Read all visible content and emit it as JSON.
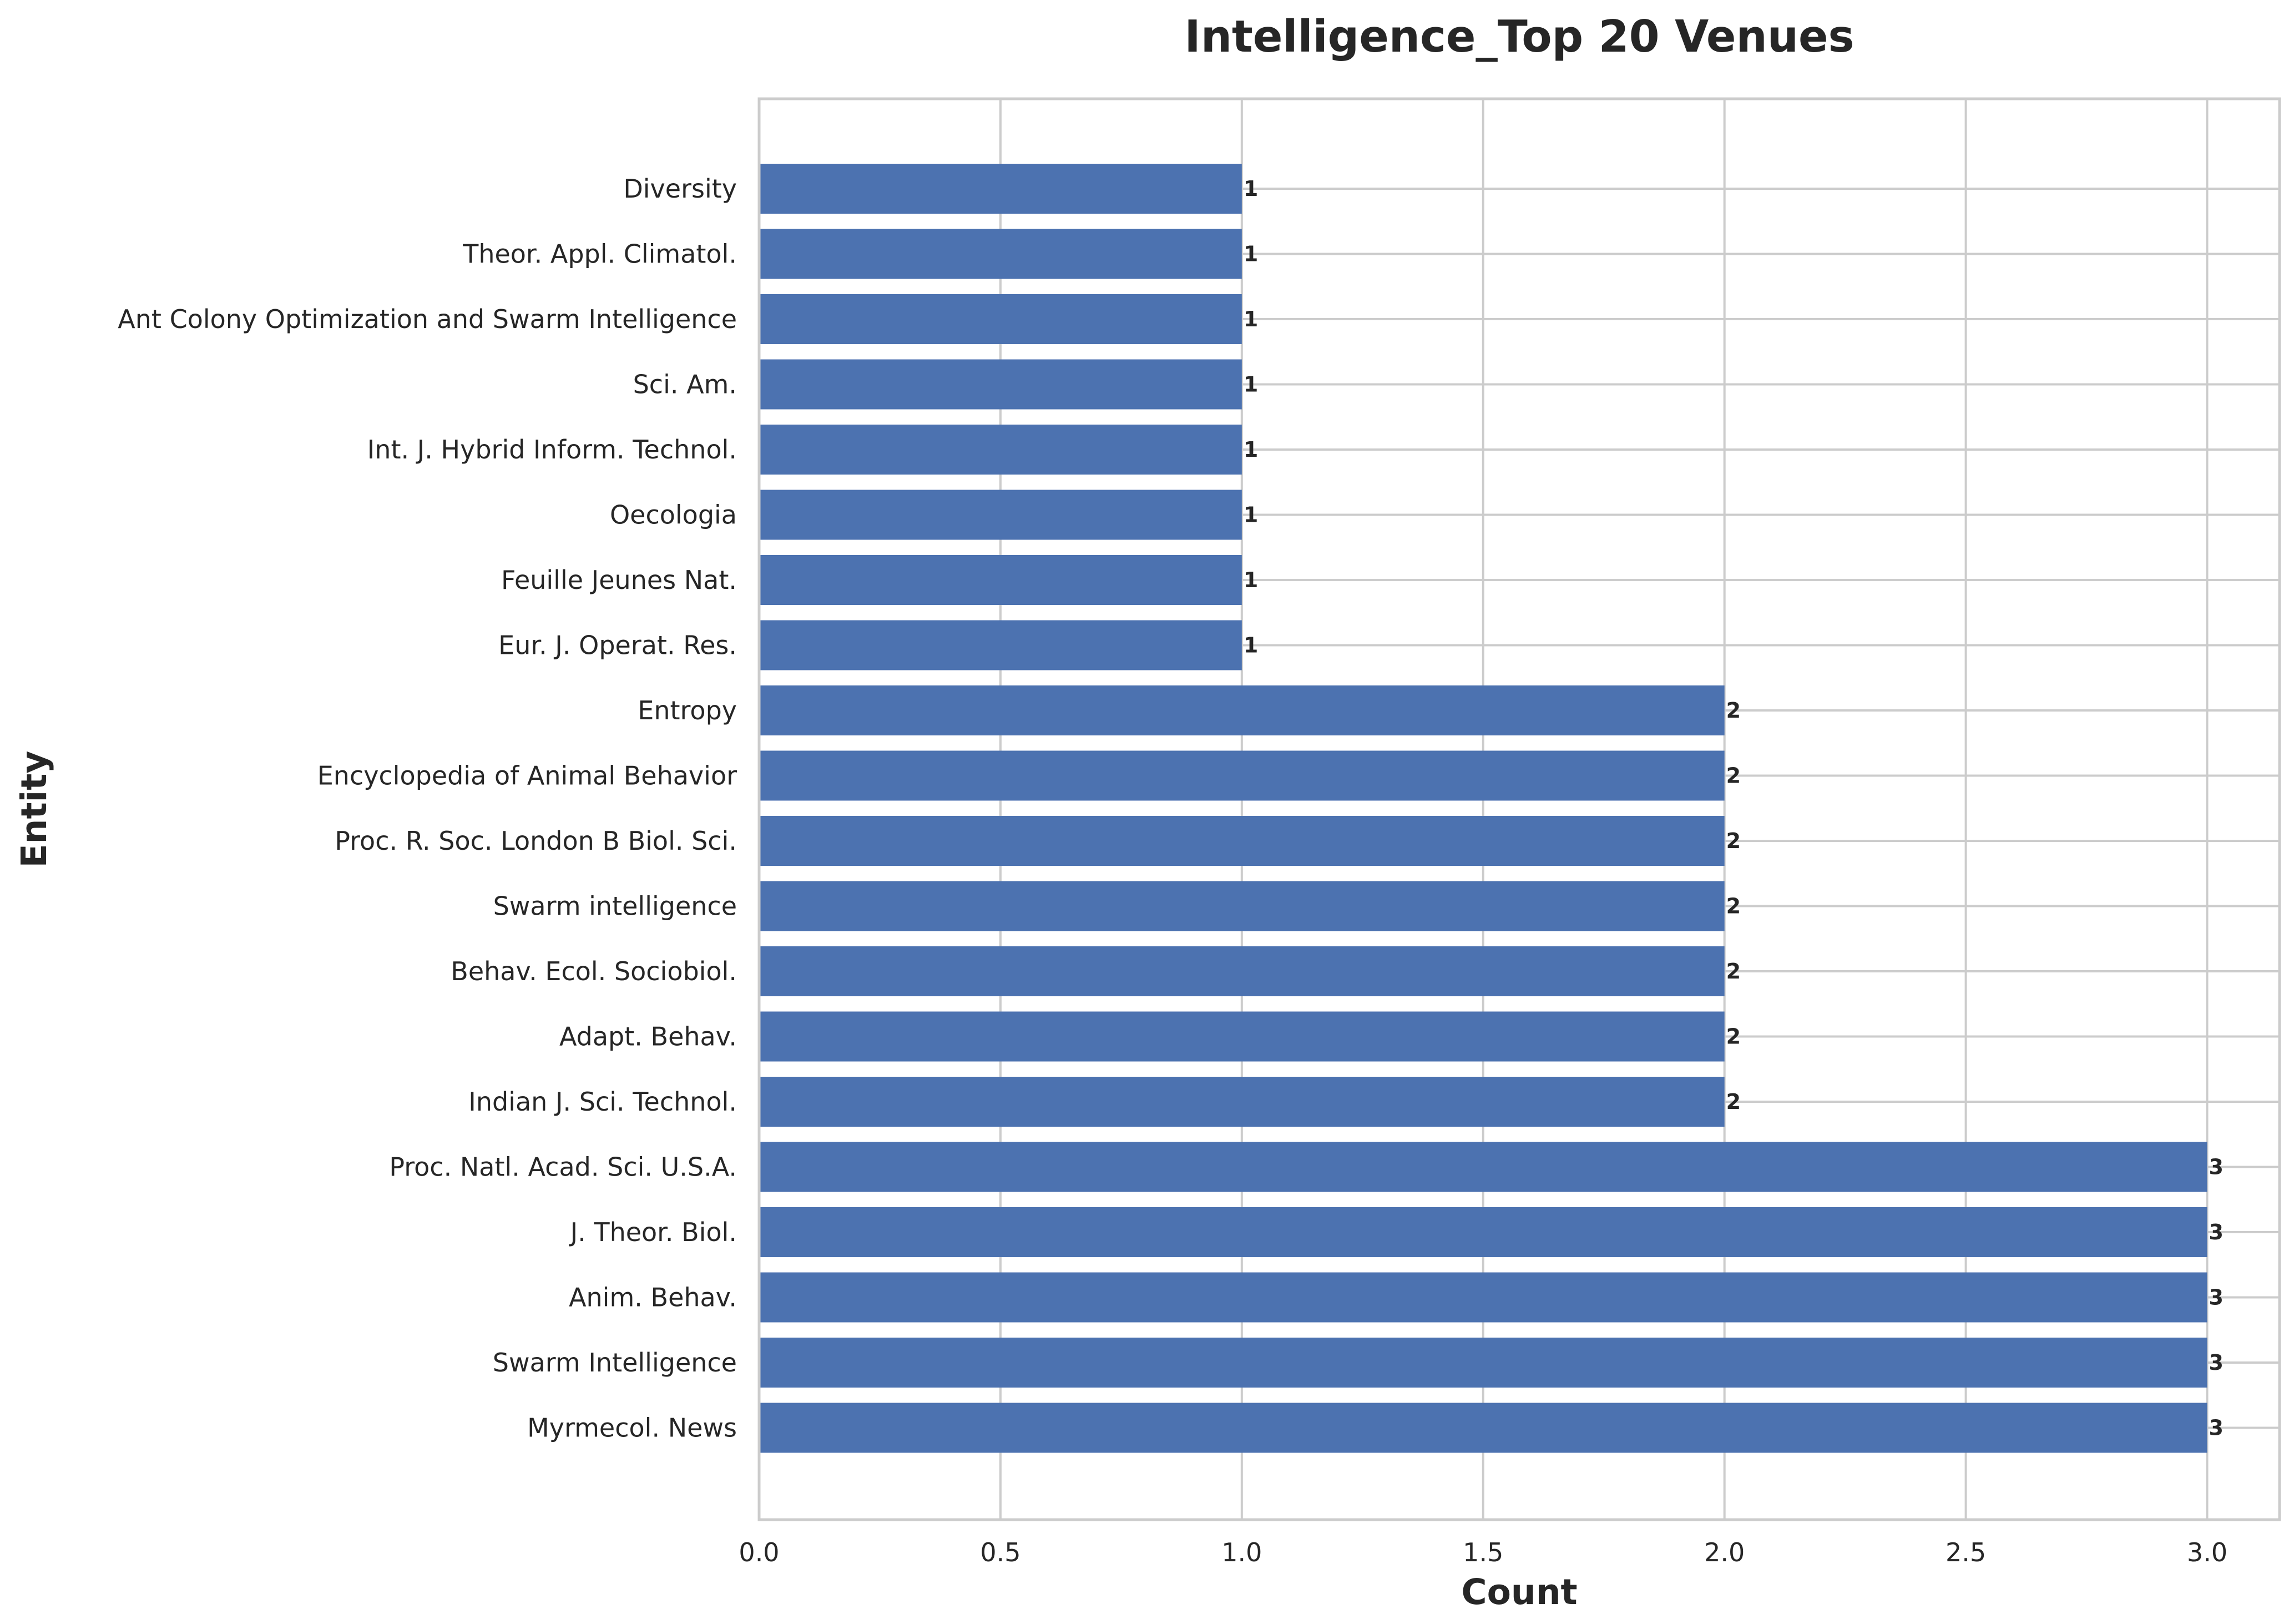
{
  "chart_data": {
    "type": "bar",
    "orientation": "horizontal",
    "title": "Intelligence_Top 20 Venues",
    "xlabel": "Count",
    "ylabel": "Entity",
    "xlim": [
      0,
      3.15
    ],
    "xticks": [
      0.0,
      0.5,
      1.0,
      1.5,
      2.0,
      2.5,
      3.0
    ],
    "xtick_labels": [
      "0.0",
      "0.5",
      "1.0",
      "1.5",
      "2.0",
      "2.5",
      "3.0"
    ],
    "grid": true,
    "bar_color": "#4c72b0",
    "categories": [
      "Diversity",
      "Theor. Appl. Climatol.",
      "Ant Colony Optimization and Swarm Intelligence",
      "Sci. Am.",
      "Int. J. Hybrid Inform. Technol.",
      "Oecologia",
      "Feuille Jeunes Nat.",
      "Eur. J. Operat. Res.",
      "Entropy",
      "Encyclopedia of Animal Behavior",
      "Proc. R. Soc. London B Biol. Sci.",
      "Swarm intelligence",
      "Behav. Ecol. Sociobiol.",
      "Adapt. Behav.",
      "Indian J. Sci. Technol.",
      "Proc. Natl. Acad. Sci. U.S.A.",
      "J. Theor. Biol.",
      "Anim. Behav.",
      "Swarm Intelligence",
      "Myrmecol. News"
    ],
    "values": [
      1,
      1,
      1,
      1,
      1,
      1,
      1,
      1,
      2,
      2,
      2,
      2,
      2,
      2,
      2,
      3,
      3,
      3,
      3,
      3
    ],
    "data_labels": [
      "1",
      "1",
      "1",
      "1",
      "1",
      "1",
      "1",
      "1",
      "2",
      "2",
      "2",
      "2",
      "2",
      "2",
      "2",
      "3",
      "3",
      "3",
      "3",
      "3"
    ]
  }
}
